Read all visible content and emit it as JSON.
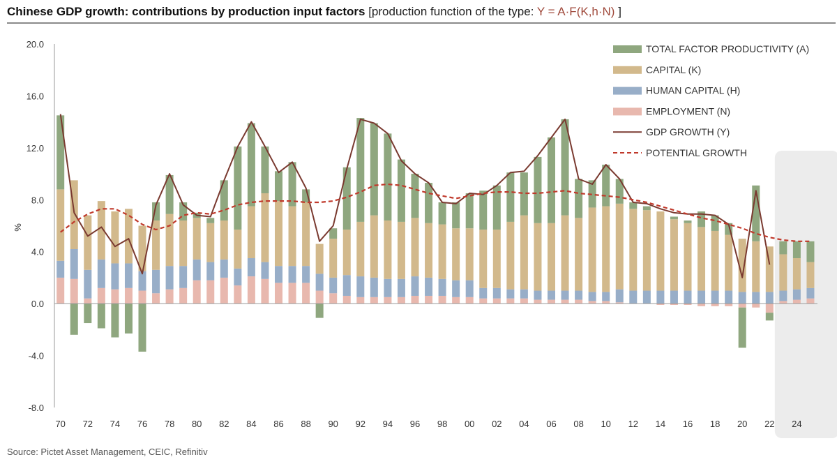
{
  "header": {
    "title": "Chinese GDP growth: contributions by production input factors",
    "subtitle_prefix": "[production function of the type:",
    "formula": "Y = A·F(K,h·N)",
    "subtitle_suffix": "]"
  },
  "source": "Source: Pictet Asset Management, CEIC, Refinitiv",
  "colors": {
    "tfp": "#8fa77f",
    "capital": "#d2b98c",
    "human_capital": "#98aec8",
    "employment": "#e8b8ae",
    "gdp_line": "#7a3a30",
    "potential_line": "#c0392b",
    "forecast_shade": "#ececec"
  },
  "chart_data": {
    "type": "bar",
    "stacked": true,
    "ylabel": "%",
    "ylim": [
      -8.0,
      20.0
    ],
    "yticks": [
      "20.0",
      "16.0",
      "12.0",
      "8.0",
      "4.0",
      "0.0",
      "-4.0",
      "-8.0"
    ],
    "ytick_values": [
      20,
      16,
      12,
      8,
      4,
      0,
      -4,
      -8
    ],
    "xtick_labels": [
      "70",
      "72",
      "74",
      "76",
      "78",
      "80",
      "82",
      "84",
      "86",
      "88",
      "90",
      "92",
      "94",
      "96",
      "98",
      "00",
      "02",
      "04",
      "06",
      "08",
      "10",
      "12",
      "14",
      "16",
      "18",
      "20",
      "22",
      "24"
    ],
    "forecast_years": [
      2023,
      2024,
      2025
    ],
    "years": [
      1970,
      1971,
      1972,
      1973,
      1974,
      1975,
      1976,
      1977,
      1978,
      1979,
      1980,
      1981,
      1982,
      1983,
      1984,
      1985,
      1986,
      1987,
      1988,
      1989,
      1990,
      1991,
      1992,
      1993,
      1994,
      1995,
      1996,
      1997,
      1998,
      1999,
      2000,
      2001,
      2002,
      2003,
      2004,
      2005,
      2006,
      2007,
      2008,
      2009,
      2010,
      2011,
      2012,
      2013,
      2014,
      2015,
      2016,
      2017,
      2018,
      2019,
      2020,
      2021,
      2022,
      2023,
      2024,
      2025
    ],
    "series": [
      {
        "name": "EMPLOYMENT (N)",
        "key": "employment",
        "values": [
          2.0,
          1.9,
          0.4,
          1.2,
          1.1,
          1.2,
          1.0,
          0.8,
          1.1,
          1.2,
          1.8,
          1.8,
          2.0,
          1.4,
          2.1,
          1.9,
          1.6,
          1.6,
          1.6,
          1.0,
          0.8,
          0.6,
          0.5,
          0.5,
          0.5,
          0.5,
          0.6,
          0.6,
          0.6,
          0.5,
          0.5,
          0.4,
          0.4,
          0.4,
          0.4,
          0.3,
          0.3,
          0.3,
          0.3,
          0.2,
          0.2,
          0.1,
          0.0,
          0.0,
          -0.1,
          -0.1,
          -0.1,
          -0.2,
          -0.2,
          -0.2,
          -0.3,
          -0.3,
          -0.7,
          0.2,
          0.3,
          0.4
        ]
      },
      {
        "name": "HUMAN CAPITAL (H)",
        "key": "human_capital",
        "values": [
          1.3,
          2.3,
          2.2,
          2.2,
          2.0,
          1.9,
          1.5,
          1.8,
          1.8,
          1.7,
          1.6,
          1.4,
          1.4,
          1.3,
          1.4,
          1.3,
          1.3,
          1.3,
          1.3,
          1.3,
          1.2,
          1.6,
          1.6,
          1.5,
          1.4,
          1.4,
          1.5,
          1.4,
          1.3,
          1.3,
          1.3,
          0.8,
          0.8,
          0.7,
          0.7,
          0.7,
          0.7,
          0.7,
          0.7,
          0.7,
          0.7,
          1.0,
          1.0,
          1.0,
          1.0,
          1.0,
          1.0,
          1.0,
          1.0,
          1.0,
          0.9,
          0.9,
          0.9,
          0.8,
          0.8,
          0.8
        ]
      },
      {
        "name": "CAPITAL (K)",
        "key": "capital",
        "values": [
          5.5,
          5.3,
          4.2,
          4.5,
          4.0,
          4.2,
          3.5,
          3.8,
          4.0,
          3.5,
          3.2,
          3.0,
          3.0,
          3.0,
          4.0,
          5.3,
          5.0,
          4.6,
          4.9,
          2.3,
          3.0,
          3.5,
          4.2,
          4.8,
          4.5,
          4.4,
          4.5,
          4.2,
          4.2,
          4.0,
          4.0,
          4.5,
          4.5,
          5.2,
          5.7,
          5.2,
          5.2,
          5.8,
          5.6,
          6.5,
          6.6,
          6.6,
          6.3,
          6.2,
          6.1,
          5.5,
          5.2,
          4.9,
          4.6,
          4.3,
          4.1,
          3.9,
          3.5,
          2.8,
          2.4,
          2.0
        ]
      },
      {
        "name": "TOTAL FACTOR PRODUCTIVITY (A)",
        "key": "tfp",
        "values": [
          5.7,
          -2.4,
          -1.5,
          -1.9,
          -2.6,
          -2.3,
          -3.7,
          1.4,
          3.0,
          1.4,
          0.4,
          0.4,
          3.1,
          6.4,
          6.4,
          3.6,
          2.3,
          3.4,
          1.0,
          -1.1,
          0.8,
          4.8,
          8.0,
          7.1,
          6.7,
          4.8,
          3.4,
          3.1,
          1.7,
          2.0,
          2.7,
          3.0,
          3.4,
          3.8,
          3.3,
          5.1,
          6.6,
          7.4,
          3.0,
          2.1,
          3.2,
          1.9,
          0.5,
          0.3,
          0.0,
          0.2,
          0.2,
          1.2,
          1.2,
          0.9,
          -3.1,
          4.3,
          -0.6,
          1.0,
          1.3,
          1.6
        ]
      }
    ],
    "lines": [
      {
        "name": "GDP GROWTH (Y)",
        "key": "gdp_line",
        "style": "solid",
        "x": [
          1970,
          1971,
          1972,
          1973,
          1974,
          1975,
          1976,
          1977,
          1978,
          1979,
          1980,
          1981,
          1982,
          1983,
          1984,
          1985,
          1986,
          1987,
          1988,
          1989,
          1990,
          1991,
          1992,
          1993,
          1994,
          1995,
          1996,
          1997,
          1998,
          1999,
          2000,
          2001,
          2002,
          2003,
          2004,
          2005,
          2006,
          2007,
          2008,
          2009,
          2010,
          2011,
          2012,
          2013,
          2014,
          2015,
          2016,
          2017,
          2018,
          2019,
          2020,
          2021,
          2022
        ],
        "values": [
          14.6,
          7.0,
          5.2,
          5.9,
          4.4,
          5.0,
          2.3,
          7.6,
          10.0,
          7.6,
          6.8,
          6.7,
          9.5,
          12.1,
          14.0,
          12.1,
          10.1,
          10.9,
          8.9,
          4.8,
          6.0,
          10.4,
          14.2,
          13.9,
          13.1,
          11.0,
          10.0,
          9.3,
          7.8,
          7.7,
          8.5,
          8.4,
          9.1,
          10.1,
          10.2,
          11.4,
          12.8,
          14.2,
          9.6,
          9.2,
          10.7,
          9.6,
          7.8,
          7.7,
          7.3,
          7.0,
          6.9,
          6.9,
          6.8,
          6.1,
          2.0,
          8.7,
          3.0
        ]
      },
      {
        "name": "POTENTIAL GROWTH",
        "key": "potential_line",
        "style": "dashed",
        "x": [
          1970,
          1971,
          1972,
          1973,
          1974,
          1975,
          1976,
          1977,
          1978,
          1979,
          1980,
          1981,
          1982,
          1983,
          1984,
          1985,
          1986,
          1987,
          1988,
          1989,
          1990,
          1991,
          1992,
          1993,
          1994,
          1995,
          1996,
          1997,
          1998,
          1999,
          2000,
          2001,
          2002,
          2003,
          2004,
          2005,
          2006,
          2007,
          2008,
          2009,
          2010,
          2011,
          2012,
          2013,
          2014,
          2015,
          2016,
          2017,
          2018,
          2019,
          2020,
          2021,
          2022,
          2023,
          2024,
          2025
        ],
        "values": [
          5.5,
          6.3,
          6.9,
          7.3,
          7.3,
          6.8,
          6.1,
          5.7,
          6.0,
          6.8,
          7.0,
          6.9,
          7.2,
          7.6,
          7.8,
          7.9,
          7.9,
          7.9,
          7.8,
          7.8,
          7.9,
          8.2,
          8.6,
          9.1,
          9.2,
          9.1,
          8.8,
          8.5,
          8.3,
          8.1,
          8.3,
          8.5,
          8.6,
          8.6,
          8.5,
          8.5,
          8.6,
          8.7,
          8.5,
          8.4,
          8.3,
          8.2,
          8.0,
          7.8,
          7.5,
          7.2,
          6.9,
          6.6,
          6.4,
          6.1,
          5.8,
          5.4,
          5.1,
          4.9,
          4.8,
          4.8
        ]
      }
    ],
    "legend": {
      "position": "top-right",
      "entries": [
        {
          "label": "TOTAL FACTOR PRODUCTIVITY (A)",
          "key": "tfp",
          "kind": "box"
        },
        {
          "label": "CAPITAL (K)",
          "key": "capital",
          "kind": "box"
        },
        {
          "label": "HUMAN CAPITAL (H)",
          "key": "human_capital",
          "kind": "box"
        },
        {
          "label": "EMPLOYMENT (N)",
          "key": "employment",
          "kind": "box"
        },
        {
          "label": "GDP GROWTH (Y)",
          "key": "gdp_line",
          "kind": "line"
        },
        {
          "label": "POTENTIAL GROWTH",
          "key": "potential_line",
          "kind": "dashed"
        }
      ]
    }
  }
}
